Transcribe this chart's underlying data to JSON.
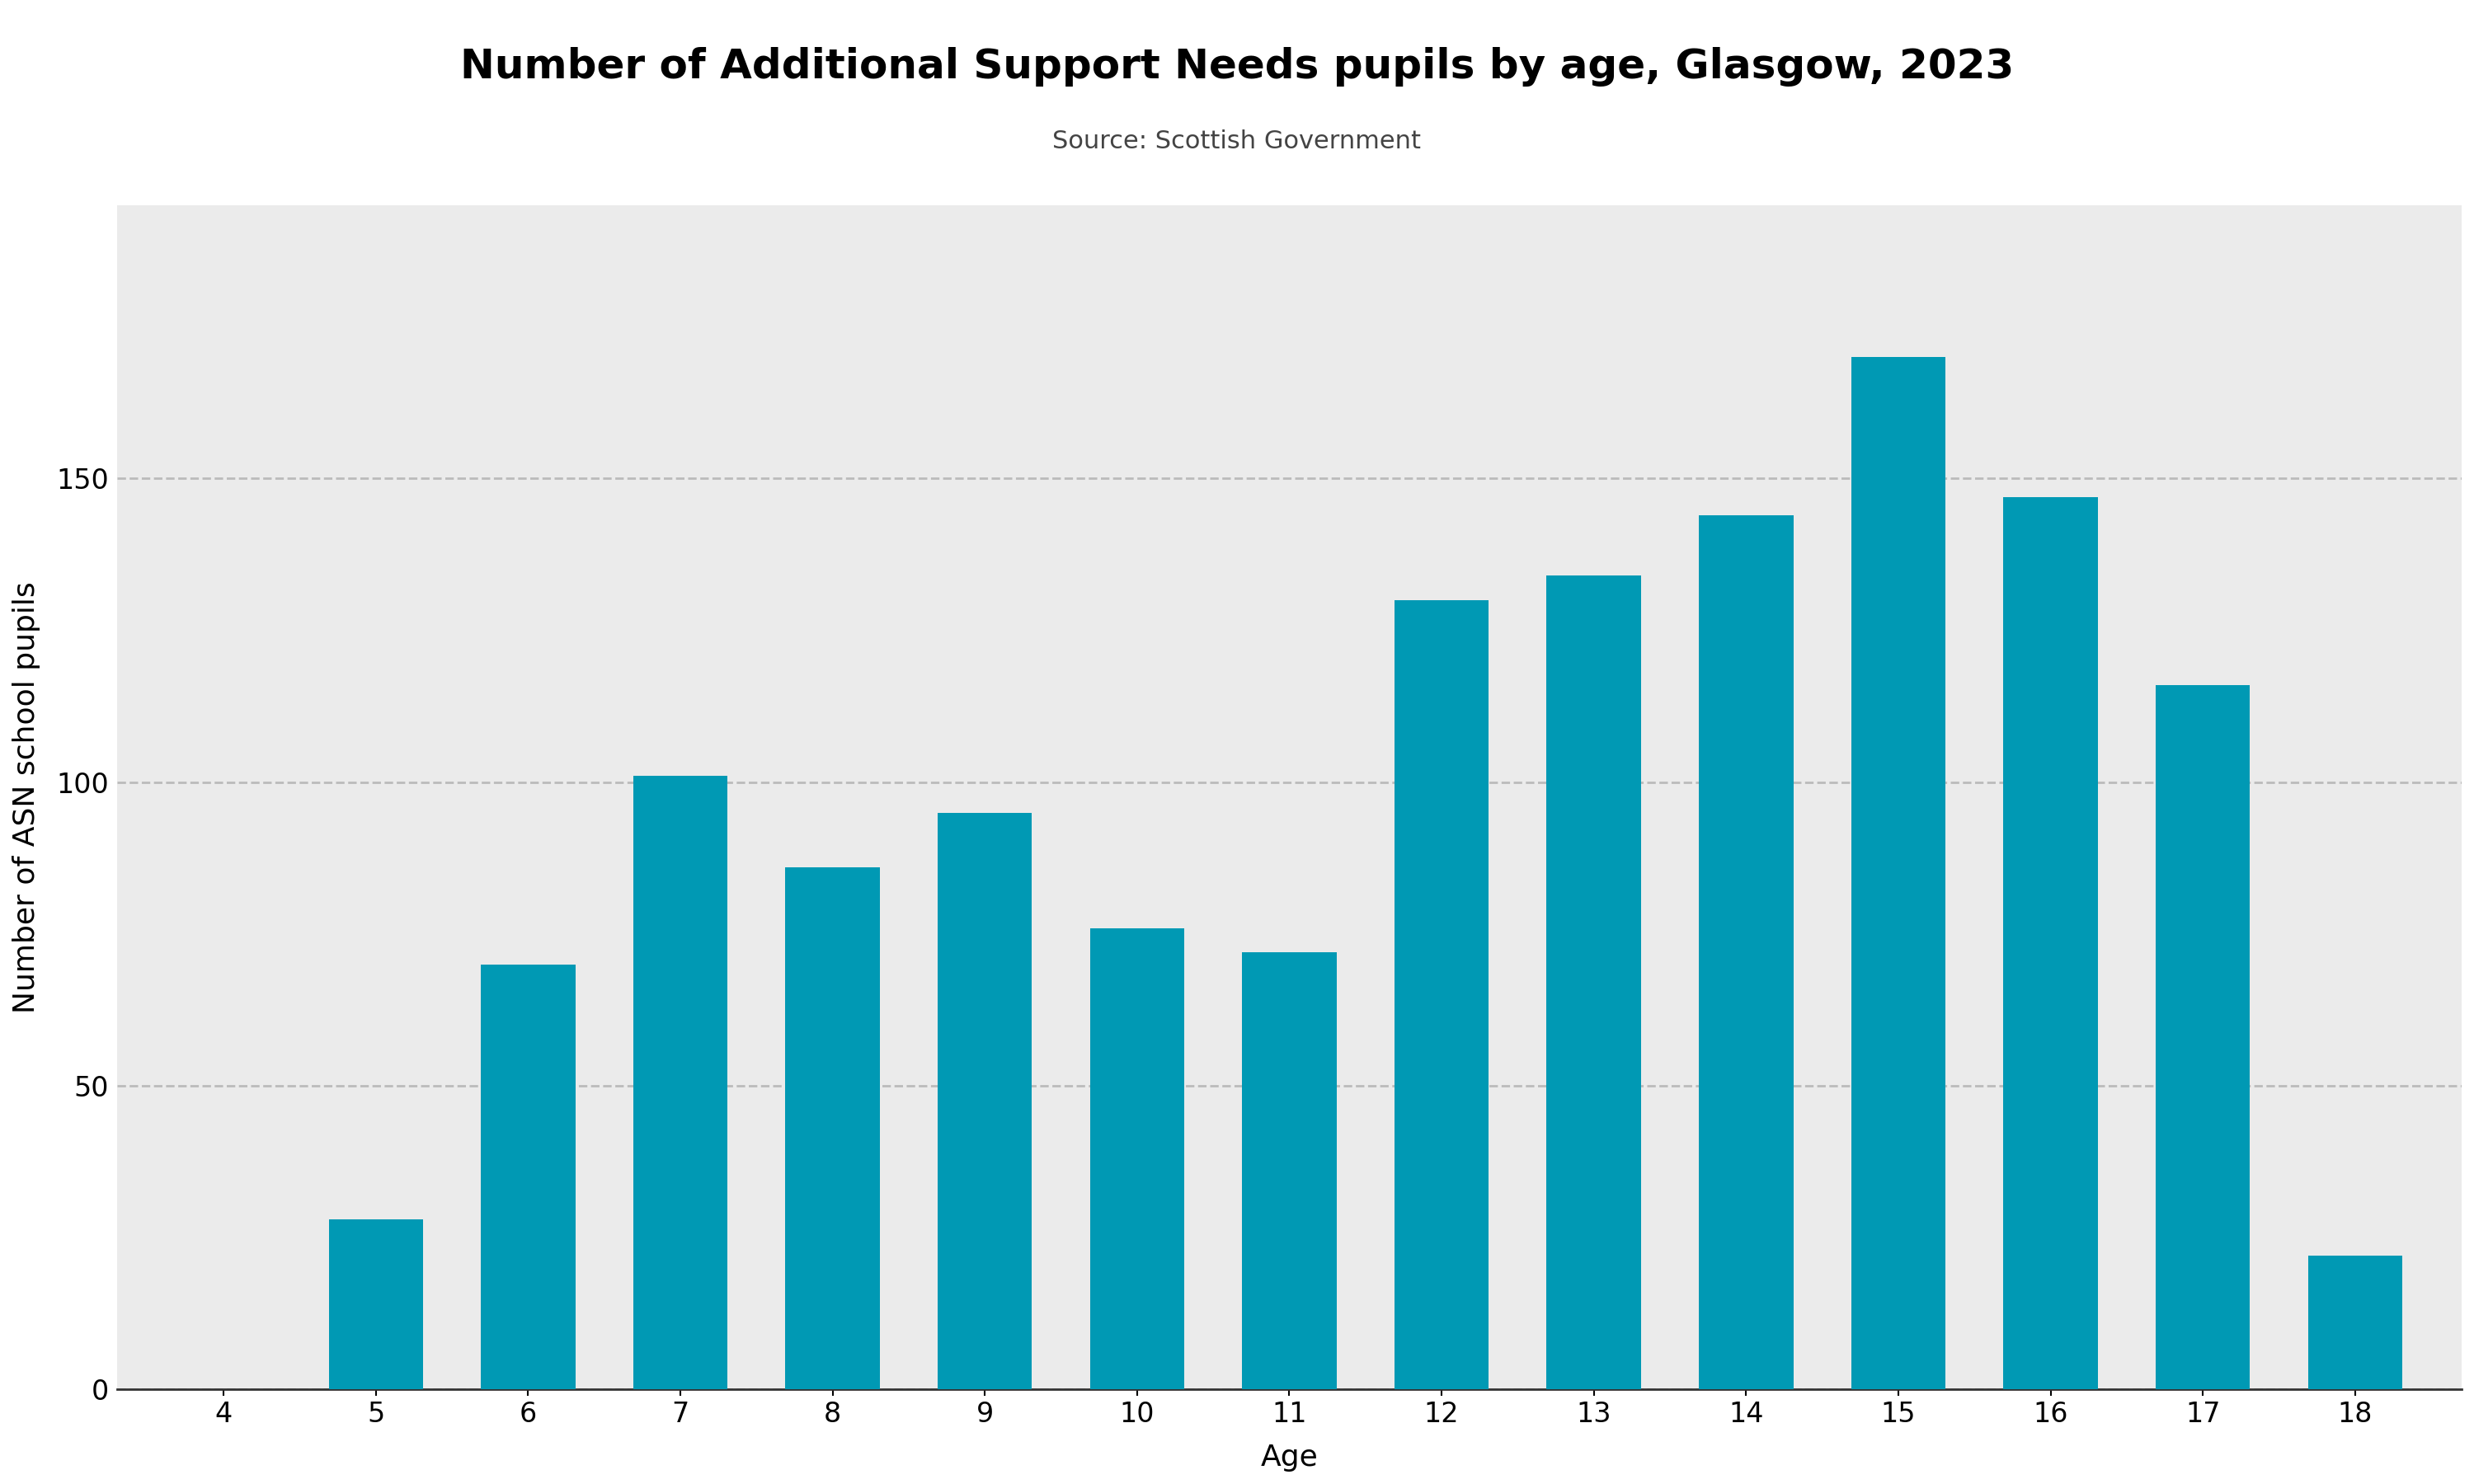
{
  "title": "Number of Additional Support Needs pupils by age, Glasgow, 2023",
  "subtitle": "Source: Scottish Government",
  "xlabel": "Age",
  "ylabel": "Number of ASN school pupils",
  "bar_color": "#0099B4",
  "background_color": "#EBEBEB",
  "ages": [
    4,
    5,
    6,
    7,
    8,
    9,
    10,
    11,
    12,
    13,
    14,
    15,
    16,
    17,
    18
  ],
  "values": [
    0,
    28,
    70,
    101,
    86,
    95,
    76,
    72,
    130,
    134,
    144,
    170,
    147,
    116,
    22
  ],
  "ylim": [
    0,
    195
  ],
  "yticks": [
    0,
    50,
    100,
    150
  ],
  "title_fontsize": 36,
  "subtitle_fontsize": 22,
  "axis_label_fontsize": 26,
  "tick_fontsize": 24,
  "grid_color": "#BBBBBB",
  "fig_bg_color": "#FFFFFF",
  "bar_width": 0.62
}
